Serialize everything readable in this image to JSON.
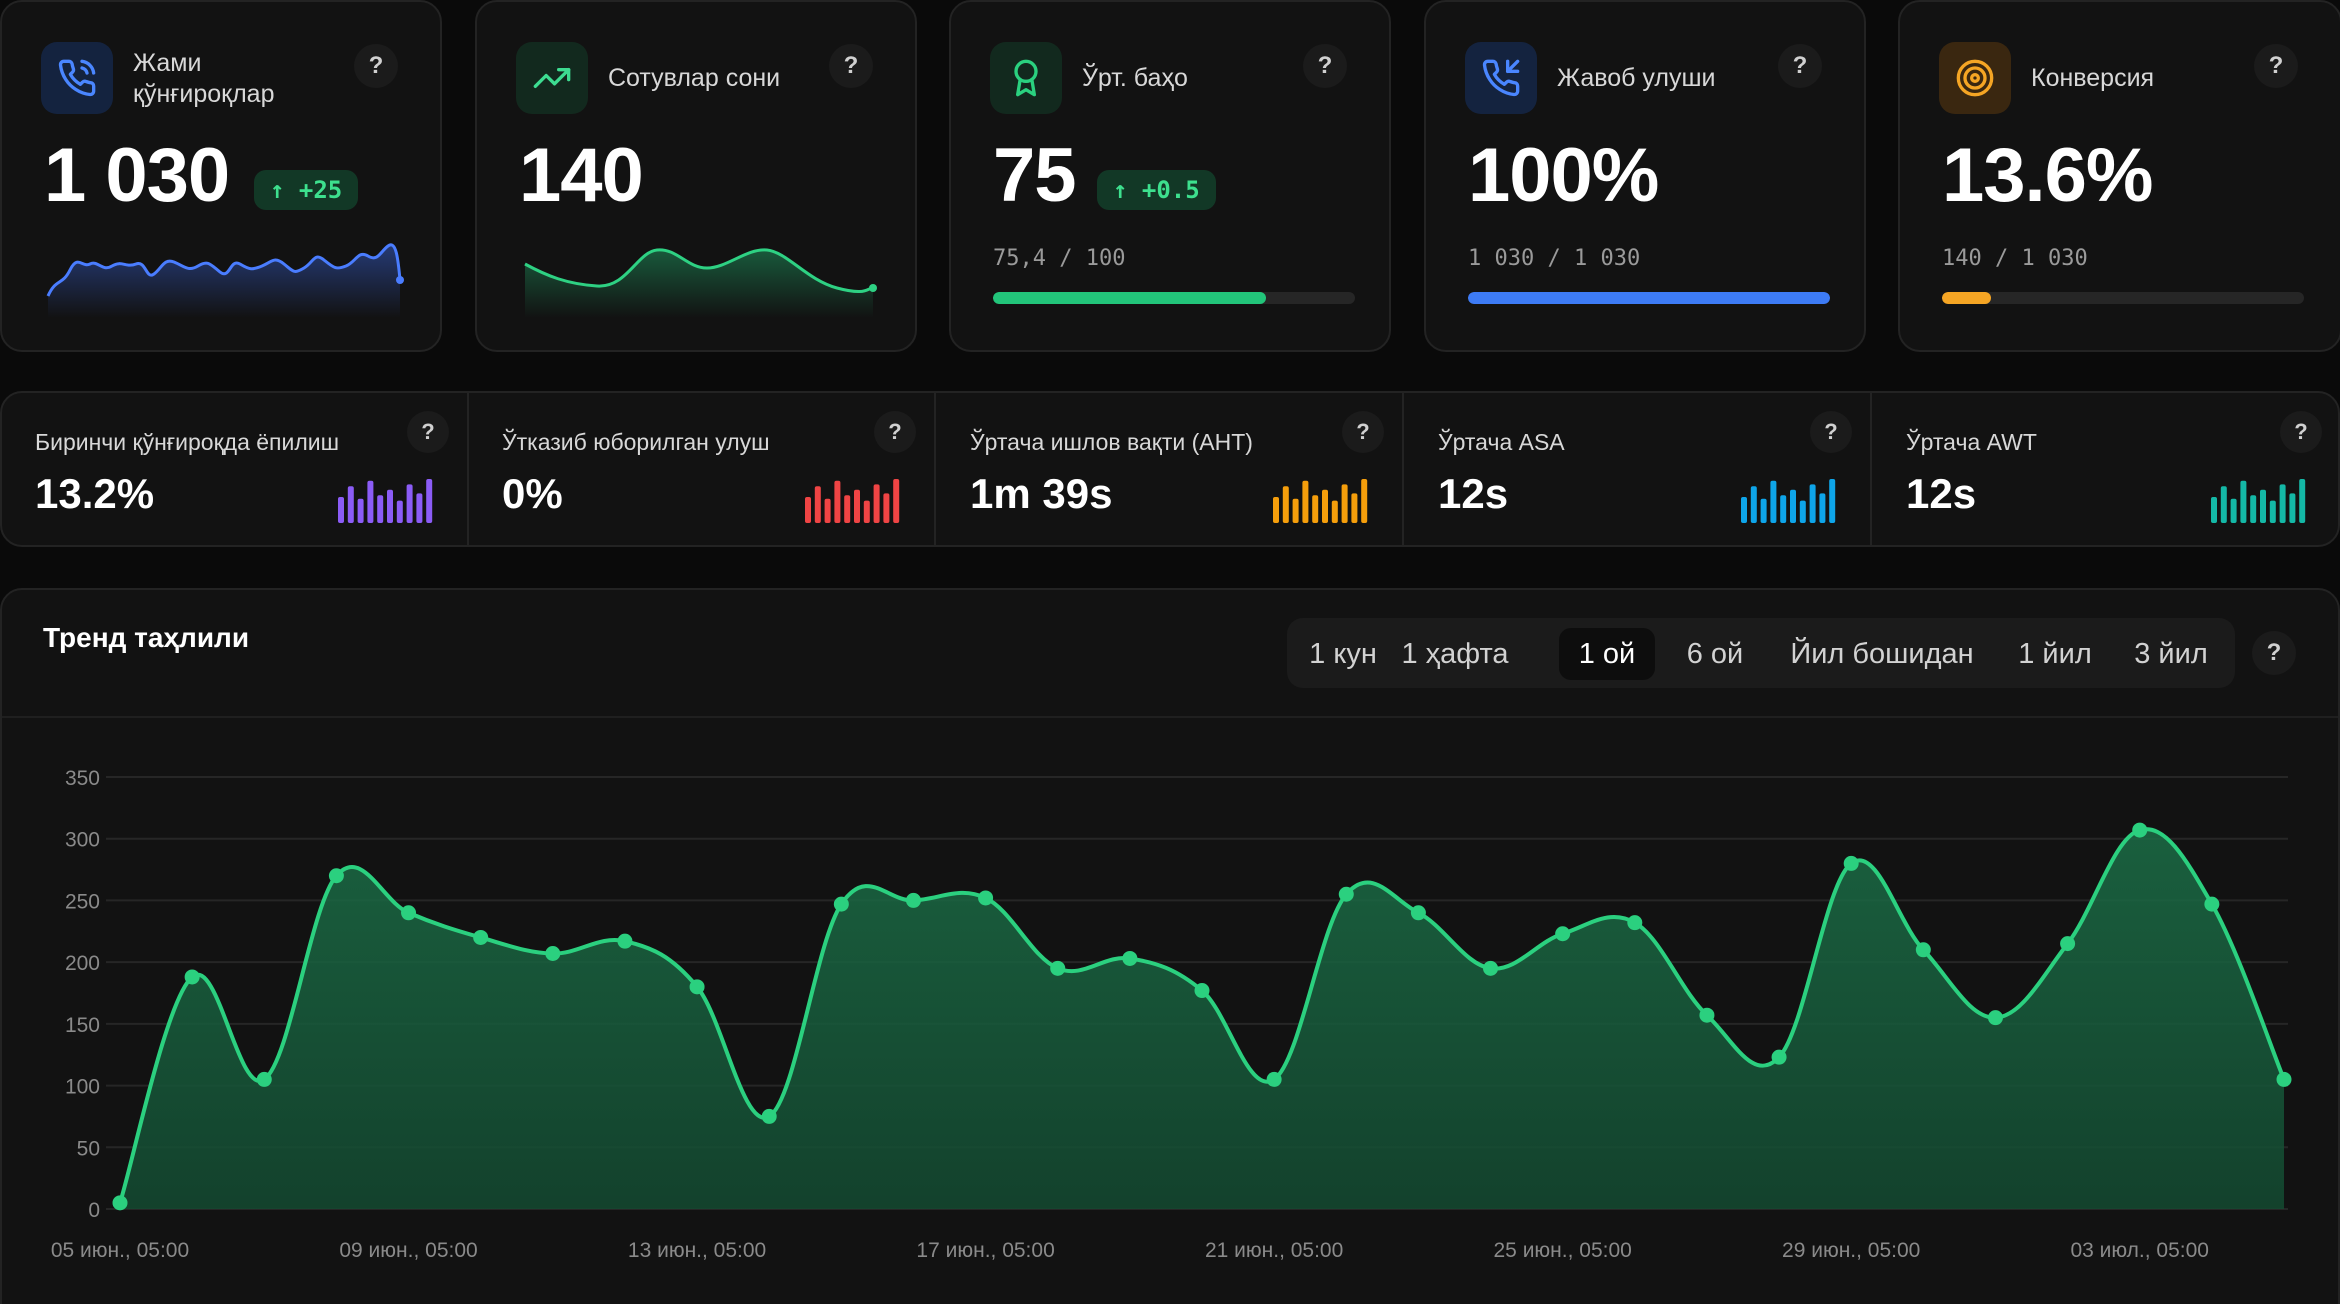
{
  "kpis": [
    {
      "title": "Жами қўнғироқлар",
      "value": "1 030",
      "delta": "↑ +25",
      "icon": "phone-icon",
      "color": "#4a86ff"
    },
    {
      "title": "Сотувлар сони",
      "value": "140",
      "icon": "trending-up-icon",
      "color": "#3ddc91"
    },
    {
      "title": "Ўрт. баҳо",
      "value": "75",
      "delta": "↑ +0.5",
      "ratio": "75,4 / 100",
      "progress": 0.754,
      "icon": "award-icon",
      "color": "#2ad17f"
    },
    {
      "title": "Жавоб улуши",
      "value": "100%",
      "ratio": "1 030 / 1 030",
      "progress": 1.0,
      "icon": "phone-incoming-icon",
      "color": "#3d7bf5"
    },
    {
      "title": "Конверсия",
      "value": "13.6%",
      "ratio": "140 / 1 030",
      "progress": 0.136,
      "icon": "target-icon",
      "color": "#f5a524"
    }
  ],
  "metrics": [
    {
      "label": "Биринчи қўнғироқда ёпилиш",
      "value": "13.2%",
      "color": "#8b5cf6"
    },
    {
      "label": "Ўтказиб юборилган улуш",
      "value": "0%",
      "color": "#ef4444"
    },
    {
      "label": "Ўртача ишлов вақти (AHT)",
      "value": "1m 39s",
      "color": "#f59e0b"
    },
    {
      "label": "Ўртача ASA",
      "value": "12s",
      "color": "#0ea5e9"
    },
    {
      "label": "Ўртача AWT",
      "value": "12s",
      "color": "#14b8a6"
    }
  ],
  "trend": {
    "title": "Тренд таҳлили",
    "ranges": [
      "1 кун",
      "1 ҳафта",
      "1 ой",
      "6 ой",
      "Йил бошидан",
      "1 йил",
      "3 йил"
    ],
    "active_range": "1 ой",
    "help": "?"
  },
  "help_label": "?",
  "chart_data": {
    "type": "area",
    "x": [
      "05 июн., 05:00",
      "",
      "",
      "",
      "09 июн., 05:00",
      "",
      "",
      "",
      "13 июн., 05:00",
      "",
      "",
      "",
      "17 июн., 05:00",
      "",
      "",
      "",
      "21 июн., 05:00",
      "",
      "",
      "",
      "25 июн., 05:00",
      "",
      "",
      "",
      "29 июн., 05:00",
      "",
      "",
      "",
      "03 июл., 05:00",
      "",
      ""
    ],
    "values": [
      5,
      188,
      105,
      270,
      240,
      220,
      207,
      217,
      180,
      75,
      247,
      250,
      252,
      195,
      203,
      177,
      105,
      255,
      240,
      195,
      223,
      232,
      157,
      123,
      280,
      210,
      155,
      215,
      307,
      247,
      105
    ],
    "yticks": [
      0,
      50,
      100,
      150,
      200,
      250,
      300,
      350
    ],
    "xticks": [
      "05 июн., 05:00",
      "09 июн., 05:00",
      "13 июн., 05:00",
      "17 июн., 05:00",
      "21 июн., 05:00",
      "25 июн., 05:00",
      "29 июн., 05:00",
      "03 июл., 05:00"
    ],
    "ylim": [
      0,
      350
    ],
    "grid": true,
    "color": "#2bd07f"
  }
}
